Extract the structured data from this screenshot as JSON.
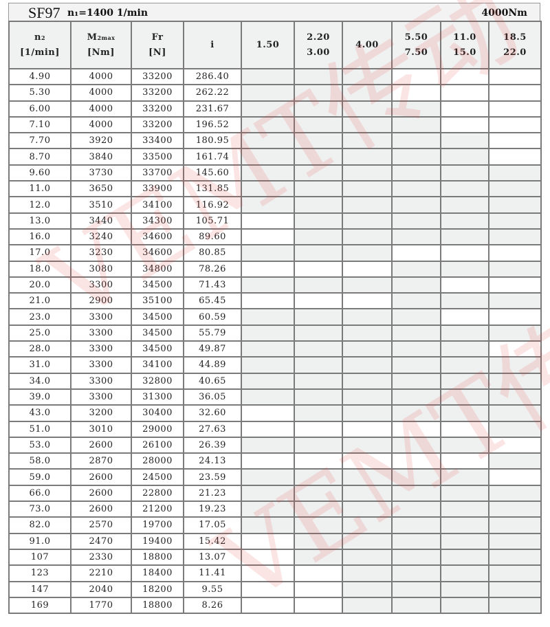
{
  "title": {
    "model": "SF97",
    "input_speed": "n₁=1400 1/min",
    "torque": "4000Nm"
  },
  "headers": {
    "n2": {
      "main": "n",
      "sub": "2",
      "unit": "[1/min]"
    },
    "m2max": {
      "main": "M",
      "sub": "2max",
      "unit": "[Nm]"
    },
    "fr": {
      "main": "Fr",
      "unit": "[N]"
    },
    "i": {
      "main": "i"
    },
    "motor_power": [
      [
        "1.50"
      ],
      [
        "2.20",
        "3.00"
      ],
      [
        "4.00"
      ],
      [
        "5.50",
        "7.50"
      ],
      [
        "11.0",
        "15.0"
      ],
      [
        "18.5",
        "22.0"
      ]
    ]
  },
  "rows": [
    [
      "4.90",
      "4000",
      "33200",
      "286.40",
      "gggwww"
    ],
    [
      "5.30",
      "4000",
      "33200",
      "262.22",
      "gggwww"
    ],
    [
      "6.00",
      "4000",
      "33200",
      "231.67",
      "ggggww"
    ],
    [
      "7.10",
      "4000",
      "33200",
      "196.52",
      "ggggww"
    ],
    [
      "7.70",
      "3920",
      "33400",
      "180.95",
      "gggggw"
    ],
    [
      "8.70",
      "3840",
      "33500",
      "161.74",
      "gggggw"
    ],
    [
      "9.60",
      "3730",
      "33700",
      "145.60",
      "gggggg"
    ],
    [
      "11.0",
      "3650",
      "33900",
      "131.85",
      "gggggg"
    ],
    [
      "12.0",
      "3510",
      "34100",
      "116.92",
      "gggggg"
    ],
    [
      "13.0",
      "3440",
      "34300",
      "105.71",
      "wggggg"
    ],
    [
      "16.0",
      "3240",
      "34600",
      "89.60",
      "wggggg"
    ],
    [
      "17.0",
      "3230",
      "34600",
      "80.85",
      "gggwww"
    ],
    [
      "18.0",
      "3080",
      "34800",
      "78.26",
      "wwwggg"
    ],
    [
      "20.0",
      "3300",
      "34500",
      "71.43",
      "ggggww"
    ],
    [
      "21.0",
      "2900",
      "35100",
      "65.45",
      "wwwggg"
    ],
    [
      "23.0",
      "3300",
      "34500",
      "60.59",
      "ggggww"
    ],
    [
      "25.0",
      "3300",
      "34500",
      "55.79",
      "gggggg"
    ],
    [
      "28.0",
      "3300",
      "34500",
      "49.87",
      "gggggw"
    ],
    [
      "31.0",
      "3300",
      "34100",
      "44.89",
      "gggggg"
    ],
    [
      "34.0",
      "3300",
      "32800",
      "40.65",
      "gggggg"
    ],
    [
      "39.0",
      "3300",
      "31300",
      "36.05",
      "gggggg"
    ],
    [
      "43.0",
      "3200",
      "30400",
      "32.60",
      "wggggg"
    ],
    [
      "51.0",
      "3010",
      "29000",
      "27.63",
      "wwwwwg"
    ],
    [
      "53.0",
      "2600",
      "26100",
      "26.39",
      "gggggw"
    ],
    [
      "58.0",
      "2870",
      "28000",
      "24.13",
      "wwwwwg"
    ],
    [
      "59.0",
      "2600",
      "24500",
      "23.59",
      "gggggw"
    ],
    [
      "66.0",
      "2600",
      "22800",
      "21.23",
      "gggggg"
    ],
    [
      "73.0",
      "2600",
      "21200",
      "19.23",
      "gggggg"
    ],
    [
      "82.0",
      "2570",
      "19700",
      "17.05",
      "gggggg"
    ],
    [
      "91.0",
      "2470",
      "19400",
      "15.42",
      "wggggg"
    ],
    [
      "107",
      "2330",
      "18800",
      "13.07",
      "wggggg"
    ],
    [
      "123",
      "2210",
      "18400",
      "11.41",
      "wwgggg"
    ],
    [
      "147",
      "2040",
      "18200",
      "9.55",
      "wwgggg"
    ],
    [
      "169",
      "1770",
      "18800",
      "8.26",
      "wwgggg"
    ]
  ],
  "legend_shading": {
    "available": "#eff0f0",
    "unavailable": "#ffffff"
  },
  "watermark": {
    "text": "VEMT传动",
    "color": "#e8393a"
  }
}
